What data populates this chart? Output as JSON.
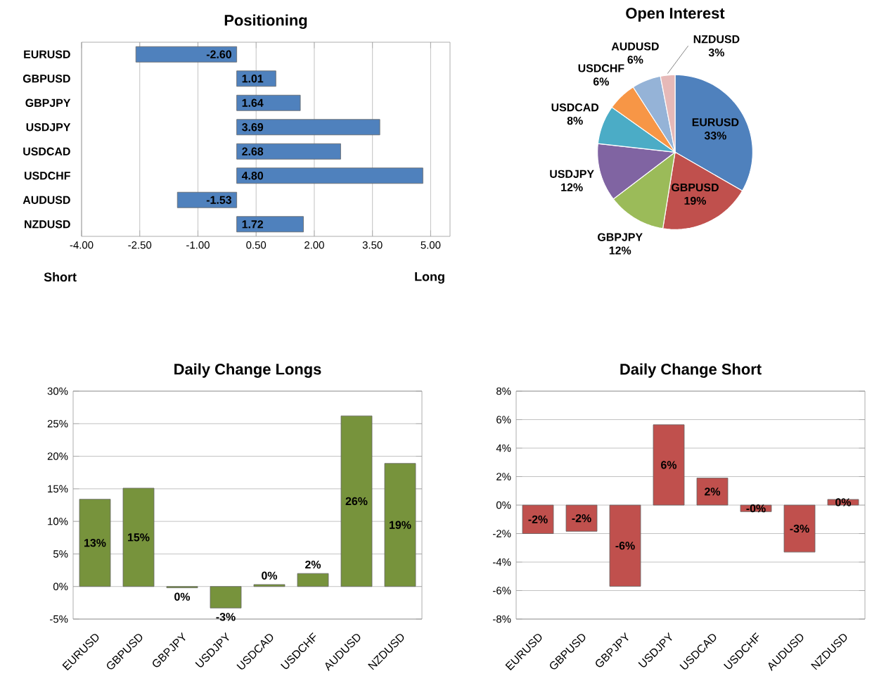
{
  "chart_data": [
    {
      "type": "bar",
      "title": "Positioning",
      "orientation": "horizontal",
      "categories": [
        "EURUSD",
        "GBPUSD",
        "GBPJPY",
        "USDJPY",
        "USDCAD",
        "USDCHF",
        "AUDUSD",
        "NZDUSD"
      ],
      "values": [
        -2.6,
        1.01,
        1.64,
        3.69,
        2.68,
        4.8,
        -1.53,
        1.72
      ],
      "value_labels": [
        "-2.60",
        "1.01",
        "1.64",
        "3.69",
        "2.68",
        "4.80",
        "-1.53",
        "1.72"
      ],
      "color": "#4f81bd",
      "xlim": [
        -4,
        5.5
      ],
      "xticks": [
        {
          "value": -4,
          "label": "-4.00"
        },
        {
          "value": -2.5,
          "label": "-2.50"
        },
        {
          "value": -1,
          "label": "-1.00"
        },
        {
          "value": 0.5,
          "label": "0.50"
        },
        {
          "value": 2,
          "label": "2.00"
        },
        {
          "value": 3.5,
          "label": "3.50"
        },
        {
          "value": 5,
          "label": "5.00"
        }
      ],
      "grid": "x",
      "annotations": [
        "Short",
        "Long"
      ]
    },
    {
      "type": "pie",
      "title": "Open Interest",
      "categories": [
        "EURUSD",
        "GBPUSD",
        "GBPJPY",
        "USDJPY",
        "USDCAD",
        "USDCHF",
        "AUDUSD",
        "NZDUSD"
      ],
      "values": [
        33,
        19,
        12,
        12,
        8,
        6,
        6,
        3
      ],
      "value_labels": [
        "33%",
        "19%",
        "12%",
        "12%",
        "8%",
        "6%",
        "6%",
        "3%"
      ],
      "colors": [
        "#4f81bd",
        "#c0504d",
        "#9bbb59",
        "#8064a2",
        "#4bacc6",
        "#f79646",
        "#95b3d7",
        "#e6b9b8"
      ]
    },
    {
      "type": "bar",
      "title": "Daily Change Longs",
      "categories": [
        "EURUSD",
        "GBPUSD",
        "GBPJPY",
        "USDJPY",
        "USDCAD",
        "USDCHF",
        "AUDUSD",
        "NZDUSD"
      ],
      "values": [
        13.4,
        15.1,
        -0.2,
        -3.3,
        0.3,
        2.0,
        26.2,
        18.9
      ],
      "value_labels": [
        "13%",
        "15%",
        "0%",
        "-3%",
        "0%",
        "2%",
        "26%",
        "19%"
      ],
      "color": "#77933c",
      "ylim": [
        -5,
        30
      ],
      "yticks": [
        {
          "value": -5,
          "label": "-5%"
        },
        {
          "value": 0,
          "label": "0%"
        },
        {
          "value": 5,
          "label": "5%"
        },
        {
          "value": 10,
          "label": "10%"
        },
        {
          "value": 15,
          "label": "15%"
        },
        {
          "value": 20,
          "label": "20%"
        },
        {
          "value": 25,
          "label": "25%"
        },
        {
          "value": 30,
          "label": "30%"
        }
      ],
      "grid": "y"
    },
    {
      "type": "bar",
      "title": "Daily Change Short",
      "categories": [
        "EURUSD",
        "GBPUSD",
        "GBPJPY",
        "USDJPY",
        "USDCAD",
        "USDCHF",
        "AUDUSD",
        "NZDUSD"
      ],
      "values": [
        -2.0,
        -1.84,
        -5.7,
        5.64,
        1.9,
        -0.46,
        -3.3,
        0.4
      ],
      "value_labels": [
        "-2%",
        "-2%",
        "-6%",
        "6%",
        "2%",
        "-0%",
        "-3%",
        "0%"
      ],
      "color": "#c0504d",
      "ylim": [
        -8,
        8
      ],
      "yticks": [
        {
          "value": -8,
          "label": "-8%"
        },
        {
          "value": -6,
          "label": "-6%"
        },
        {
          "value": -4,
          "label": "-4%"
        },
        {
          "value": -2,
          "label": "-2%"
        },
        {
          "value": 0,
          "label": "0%"
        },
        {
          "value": 2,
          "label": "2%"
        },
        {
          "value": 4,
          "label": "4%"
        },
        {
          "value": 6,
          "label": "6%"
        },
        {
          "value": 8,
          "label": "8%"
        }
      ],
      "grid": "y"
    }
  ]
}
